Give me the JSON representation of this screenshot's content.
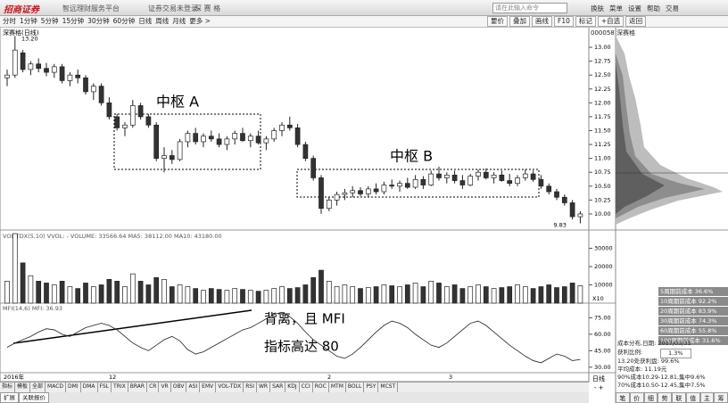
{
  "top_bar": {
    "logo": "招商证券",
    "platform": "智远理财服务平台",
    "login_status": "证券交易未登录",
    "stock": "深 赛 格",
    "search_placeholder": "请在此输入命令",
    "menu": [
      "换肤",
      "菜单",
      "设置",
      "帮助",
      "交易"
    ]
  },
  "toolbar": {
    "periods": [
      "分时",
      "1分钟",
      "5分钟",
      "15分钟",
      "30分钟",
      "60分钟",
      "日线",
      "周线",
      "月线",
      "更多 >"
    ],
    "buttons": [
      "要价",
      "叠加",
      "画线",
      "F10",
      "标记",
      "+自选",
      "返回"
    ]
  },
  "price_panel": {
    "title": "深赛格(日线)",
    "high_label": "13.20",
    "low_label": "9.83",
    "annotations": [
      "中枢 A",
      "中枢 B"
    ],
    "ylim": [
      9.71,
      13.37
    ],
    "yticks": [
      {
        "value": 13,
        "label": "13.00"
      },
      {
        "value": 12.75,
        "label": "12.75"
      },
      {
        "value": 12.5,
        "label": "12.50"
      },
      {
        "value": 12.25,
        "label": "12.25"
      },
      {
        "value": 12,
        "label": "12.00"
      },
      {
        "value": 11.75,
        "label": "11.75"
      },
      {
        "value": 11.5,
        "label": "11.50"
      },
      {
        "value": 11.25,
        "label": "11.25"
      },
      {
        "value": 11,
        "label": "11.00"
      },
      {
        "value": 10.75,
        "label": "10.75"
      },
      {
        "value": 10.5,
        "label": "10.50"
      },
      {
        "value": 10.25,
        "label": "10.25"
      },
      {
        "value": 10,
        "label": "10.00"
      }
    ],
    "candles": [
      [
        12.45,
        12.6,
        12.3,
        12.5
      ],
      [
        12.5,
        13.2,
        12.45,
        12.95
      ],
      [
        12.9,
        12.95,
        12.55,
        12.6
      ],
      [
        12.6,
        12.75,
        12.5,
        12.7
      ],
      [
        12.7,
        12.8,
        12.55,
        12.62
      ],
      [
        12.62,
        12.72,
        12.48,
        12.55
      ],
      [
        12.55,
        12.7,
        12.45,
        12.65
      ],
      [
        12.65,
        12.7,
        12.35,
        12.4
      ],
      [
        12.4,
        12.55,
        12.3,
        12.5
      ],
      [
        12.5,
        12.6,
        12.35,
        12.45
      ],
      [
        12.45,
        12.5,
        12.15,
        12.2
      ],
      [
        12.2,
        12.35,
        12.05,
        12.3
      ],
      [
        12.3,
        12.35,
        11.95,
        12
      ],
      [
        12,
        12.1,
        11.7,
        11.75
      ],
      [
        11.75,
        11.8,
        11.5,
        11.55
      ],
      [
        11.55,
        11.65,
        11.4,
        11.6
      ],
      [
        11.6,
        12.05,
        11.55,
        11.95
      ],
      [
        11.95,
        12,
        11.7,
        11.75
      ],
      [
        11.75,
        11.8,
        11.55,
        11.6
      ],
      [
        11.6,
        11.65,
        10.95,
        11
      ],
      [
        11,
        11.2,
        10.75,
        11.05
      ],
      [
        11.05,
        11.15,
        10.9,
        10.98
      ],
      [
        10.98,
        11.35,
        10.95,
        11.3
      ],
      [
        11.3,
        11.5,
        11.2,
        11.45
      ],
      [
        11.45,
        11.55,
        11.25,
        11.3
      ],
      [
        11.3,
        11.45,
        11.2,
        11.4
      ],
      [
        11.4,
        11.5,
        11.3,
        11.35
      ],
      [
        11.35,
        11.45,
        11.2,
        11.25
      ],
      [
        11.25,
        11.4,
        11.15,
        11.35
      ],
      [
        11.35,
        11.5,
        11.25,
        11.45
      ],
      [
        11.45,
        11.55,
        11.3,
        11.32
      ],
      [
        11.32,
        11.45,
        11.2,
        11.4
      ],
      [
        11.4,
        11.5,
        11.25,
        11.28
      ],
      [
        11.28,
        11.4,
        11.15,
        11.35
      ],
      [
        11.35,
        11.55,
        11.3,
        11.5
      ],
      [
        11.5,
        11.65,
        11.4,
        11.6
      ],
      [
        11.6,
        11.75,
        11.5,
        11.55
      ],
      [
        11.55,
        11.62,
        11.2,
        11.25
      ],
      [
        11.25,
        11.3,
        10.95,
        11
      ],
      [
        11,
        11.05,
        10.6,
        10.65
      ],
      [
        10.65,
        10.7,
        10,
        10.1
      ],
      [
        10.1,
        10.3,
        10.05,
        10.25
      ],
      [
        10.25,
        10.4,
        10.15,
        10.35
      ],
      [
        10.35,
        10.45,
        10.25,
        10.38
      ],
      [
        10.38,
        10.5,
        10.3,
        10.42
      ],
      [
        10.42,
        10.48,
        10.32,
        10.36
      ],
      [
        10.36,
        10.5,
        10.3,
        10.45
      ],
      [
        10.45,
        10.55,
        10.35,
        10.4
      ],
      [
        10.4,
        10.58,
        10.35,
        10.52
      ],
      [
        10.52,
        10.62,
        10.45,
        10.5
      ],
      [
        10.5,
        10.6,
        10.4,
        10.55
      ],
      [
        10.55,
        10.65,
        10.45,
        10.48
      ],
      [
        10.48,
        10.7,
        10.45,
        10.62
      ],
      [
        10.62,
        10.68,
        10.45,
        10.52
      ],
      [
        10.52,
        10.78,
        10.5,
        10.72
      ],
      [
        10.72,
        10.85,
        10.6,
        10.65
      ],
      [
        10.65,
        10.75,
        10.55,
        10.7
      ],
      [
        10.7,
        10.78,
        10.55,
        10.6
      ],
      [
        10.6,
        10.7,
        10.45,
        10.52
      ],
      [
        10.52,
        10.72,
        10.5,
        10.68
      ],
      [
        10.68,
        10.8,
        10.6,
        10.75
      ],
      [
        10.75,
        10.82,
        10.62,
        10.65
      ],
      [
        10.65,
        10.75,
        10.55,
        10.7
      ],
      [
        10.7,
        10.78,
        10.58,
        10.6
      ],
      [
        10.6,
        10.72,
        10.5,
        10.55
      ],
      [
        10.55,
        10.7,
        10.5,
        10.65
      ],
      [
        10.65,
        10.8,
        10.6,
        10.72
      ],
      [
        10.72,
        10.78,
        10.58,
        10.62
      ],
      [
        10.62,
        10.7,
        10.45,
        10.5
      ],
      [
        10.5,
        10.55,
        10.35,
        10.4
      ],
      [
        10.4,
        10.45,
        10.25,
        10.3
      ],
      [
        10.3,
        10.35,
        10.15,
        10.2
      ],
      [
        10.2,
        10.25,
        9.9,
        9.95
      ],
      [
        9.95,
        10.05,
        9.83,
        10
      ]
    ]
  },
  "volume_panel": {
    "legend": "VOL-TDX(5,10)  VVOL: -  VOLUME: 33566.64  MA5: 38112.00  MA10: 43180.00",
    "unit": "X10",
    "ylim": [
      0,
      39000
    ],
    "yticks": [
      30000,
      20000,
      10000
    ],
    "values": [
      12000,
      38000,
      22000,
      15000,
      12000,
      11000,
      10000,
      12000,
      9000,
      8000,
      11000,
      9000,
      10000,
      13000,
      12000,
      9000,
      16000,
      12000,
      10000,
      14000,
      13000,
      9000,
      10000,
      9000,
      8000,
      7000,
      8000,
      7500,
      7000,
      8000,
      7500,
      7000,
      6500,
      7000,
      8000,
      9000,
      8000,
      8500,
      10000,
      14000,
      18000,
      12000,
      9000,
      10000,
      9000,
      8000,
      8500,
      9000,
      10000,
      9500,
      9000,
      10000,
      11000,
      9000,
      12000,
      11000,
      9000,
      10000,
      8000,
      9000,
      10000,
      9000,
      8000,
      8500,
      9000,
      10000,
      9000,
      8000,
      9000,
      10000,
      8500,
      9000,
      11000,
      9500
    ]
  },
  "mfi_panel": {
    "legend": "MFI(14,6)  MFI: 36.93",
    "annotation_lines": [
      "背离，且 MFI",
      "指标高达 80"
    ],
    "ylim": [
      25,
      88.3
    ],
    "yticks": [
      {
        "value": 75,
        "label": "75.00"
      },
      {
        "value": 60,
        "label": "60.00"
      },
      {
        "value": 45,
        "label": "45.00"
      },
      {
        "value": 30,
        "label": "30.00"
      }
    ],
    "values": [
      48,
      52,
      55,
      58,
      62,
      65,
      64,
      60,
      58,
      62,
      66,
      68,
      70,
      68,
      64,
      58,
      52,
      48,
      45,
      50,
      55,
      58,
      54,
      46,
      42,
      44,
      48,
      52,
      56,
      60,
      64,
      66,
      70,
      74,
      78,
      80,
      76,
      70,
      62,
      55,
      50,
      45,
      40,
      38,
      42,
      48,
      55,
      62,
      68,
      72,
      70,
      66,
      60,
      55,
      50,
      48,
      52,
      58,
      64,
      70,
      72,
      68,
      62,
      56,
      50,
      45,
      40,
      36,
      34,
      38,
      42,
      40,
      36,
      37
    ]
  },
  "x_axis": {
    "labels": [
      "2016年",
      "12",
      "2",
      "3"
    ]
  },
  "tabs": [
    "指标",
    "模板",
    "全部",
    "MACD",
    "DMI",
    "DMA",
    "FSL",
    "TRIX",
    "BRAR",
    "CR",
    "VR",
    "OBV",
    "ASI",
    "EMV",
    "VOL-TDX",
    "RSI",
    "WR",
    "SAR",
    "KDJ",
    "CCI",
    "ROC",
    "MTM",
    "BOLL",
    "PSY",
    "MCST"
  ],
  "bottom_tabs": [
    "扩展",
    "关联报价"
  ],
  "side_panel": {
    "title": "000058 深赛格",
    "cost_legend": [
      "5周期前成本 36.6%",
      "10周期前成本 92.2%",
      "20周期前成本 83.9%",
      "30周期前成本 74.3%",
      "60周期前成本 55.8%",
      "100周期前成本 31.6%"
    ],
    "info": [
      "成本分布,日期: 2017/03/31",
      "获利比例:",
      "1.3%",
      "13.20处获利盘: 99.6%",
      "平均成本: 11.19元",
      "90%成本10.29-12.81,集中9.6%",
      "70%成本10.50-12.45,集中7.5%"
    ],
    "period": "日线",
    "zoom": "- +",
    "buttons": [
      "笔",
      "价",
      "细",
      "势",
      "联",
      "值",
      "主",
      "筹"
    ]
  }
}
